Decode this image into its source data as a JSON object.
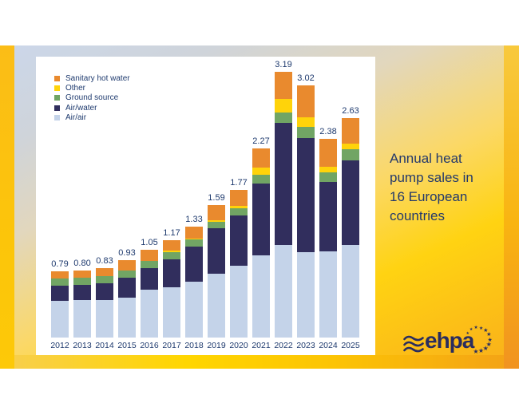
{
  "slide": {
    "caption_lines": [
      "Annual heat",
      "pump sales in",
      "16 European",
      "countries"
    ],
    "caption_text": "Annual heat pump sales in 16 European countries"
  },
  "logo": {
    "text": "ehpa",
    "star_count": 11
  },
  "colors": {
    "page_bg": "#ffffff",
    "panel_bg": "#ffffff",
    "text_navy": "#1e3a6e",
    "logo_navy": "#2a2d5e",
    "frame_gold": "#fcc404",
    "slide_top_left": "#cbd7ea",
    "slide_bottom_right": "#f9ae1b"
  },
  "chart_data": {
    "type": "bar",
    "stacked": true,
    "title": "",
    "xlabel": "",
    "ylabel": "",
    "ylim": [
      0,
      3.37
    ],
    "grid": false,
    "legend_position": "top-left",
    "value_labels_shown": true,
    "categories": [
      "2012",
      "2013",
      "2014",
      "2015",
      "2016",
      "2017",
      "2018",
      "2019",
      "2020",
      "2021",
      "2022",
      "2023",
      "2024",
      "2025"
    ],
    "series": [
      {
        "name": "Air/air",
        "color": "#c4d3e9",
        "values": [
          0.44,
          0.45,
          0.45,
          0.48,
          0.57,
          0.6,
          0.67,
          0.77,
          0.86,
          0.99,
          1.11,
          1.02,
          1.03,
          1.11
        ]
      },
      {
        "name": "Air/water",
        "color": "#312e5d",
        "values": [
          0.18,
          0.18,
          0.2,
          0.24,
          0.26,
          0.34,
          0.42,
          0.54,
          0.6,
          0.86,
          1.46,
          1.37,
          0.84,
          1.01
        ]
      },
      {
        "name": "Ground source",
        "color": "#71a564",
        "values": [
          0.09,
          0.09,
          0.09,
          0.08,
          0.09,
          0.08,
          0.09,
          0.08,
          0.09,
          0.1,
          0.13,
          0.14,
          0.11,
          0.14
        ]
      },
      {
        "name": "Other",
        "color": "#ffd30a",
        "values": [
          0.0,
          0.0,
          0.0,
          0.0,
          0.0,
          0.02,
          0.01,
          0.02,
          0.03,
          0.09,
          0.16,
          0.11,
          0.07,
          0.07
        ]
      },
      {
        "name": "Sanitary hot water",
        "color": "#e98a2e",
        "values": [
          0.08,
          0.08,
          0.09,
          0.13,
          0.13,
          0.13,
          0.14,
          0.18,
          0.19,
          0.23,
          0.33,
          0.38,
          0.33,
          0.3
        ]
      }
    ],
    "totals": [
      0.79,
      0.8,
      0.83,
      0.93,
      1.05,
      1.17,
      1.33,
      1.59,
      1.77,
      2.27,
      3.19,
      3.02,
      2.38,
      2.63
    ],
    "total_labels": [
      "0.79",
      "0.80",
      "0.83",
      "0.93",
      "1.05",
      "1.17",
      "1.33",
      "1.59",
      "1.77",
      "2.27",
      "3.19",
      "3.02",
      "2.38",
      "2.63"
    ]
  }
}
